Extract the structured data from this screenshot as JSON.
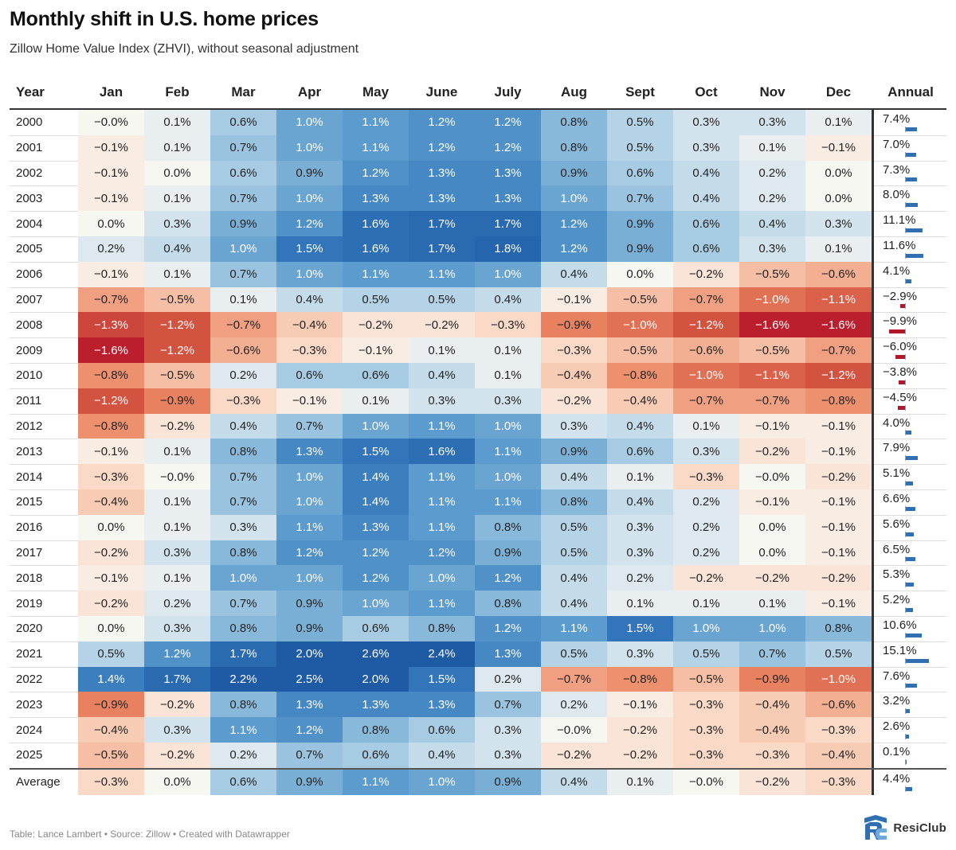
{
  "title": "Monthly shift in U.S. home prices",
  "subtitle": "Zillow Home Value Index (ZHVI), without seasonal adjustment",
  "footer": "Table: Lance Lambert • Source: Zillow • Created with Datawrapper",
  "brand": {
    "name": "ResiClub",
    "logo_icon": "resiclub-logo-icon"
  },
  "colors": {
    "positive": "#2166ac",
    "negative": "#b2182b",
    "neutral": "#f7f7f2"
  },
  "chart_data": {
    "type": "table",
    "title": "Monthly shift in U.S. home prices",
    "subtitle": "Zillow Home Value Index (ZHVI), without seasonal adjustment",
    "columns": [
      "Year",
      "Jan",
      "Feb",
      "Mar",
      "Apr",
      "May",
      "June",
      "July",
      "Aug",
      "Sept",
      "Oct",
      "Nov",
      "Dec",
      "Annual"
    ],
    "rows": [
      {
        "label": "2000",
        "values": [
          "−0.0%",
          "0.1%",
          "0.6%",
          "1.0%",
          "1.1%",
          "1.2%",
          "1.2%",
          "0.8%",
          "0.5%",
          "0.3%",
          "0.3%",
          "0.1%"
        ],
        "annual": "7.4%",
        "annual_value": 7.4
      },
      {
        "label": "2001",
        "values": [
          "−0.1%",
          "0.1%",
          "0.7%",
          "1.0%",
          "1.1%",
          "1.2%",
          "1.2%",
          "0.8%",
          "0.5%",
          "0.3%",
          "0.1%",
          "−0.1%"
        ],
        "annual": "7.0%",
        "annual_value": 7.0
      },
      {
        "label": "2002",
        "values": [
          "−0.1%",
          "0.0%",
          "0.6%",
          "0.9%",
          "1.2%",
          "1.3%",
          "1.3%",
          "0.9%",
          "0.6%",
          "0.4%",
          "0.2%",
          "0.0%"
        ],
        "annual": "7.3%",
        "annual_value": 7.3
      },
      {
        "label": "2003",
        "values": [
          "−0.1%",
          "0.1%",
          "0.7%",
          "1.0%",
          "1.3%",
          "1.3%",
          "1.3%",
          "1.0%",
          "0.7%",
          "0.4%",
          "0.2%",
          "0.0%"
        ],
        "annual": "8.0%",
        "annual_value": 8.0
      },
      {
        "label": "2004",
        "values": [
          "0.0%",
          "0.3%",
          "0.9%",
          "1.2%",
          "1.6%",
          "1.7%",
          "1.7%",
          "1.2%",
          "0.9%",
          "0.6%",
          "0.4%",
          "0.3%"
        ],
        "annual": "11.1%",
        "annual_value": 11.1
      },
      {
        "label": "2005",
        "values": [
          "0.2%",
          "0.4%",
          "1.0%",
          "1.5%",
          "1.6%",
          "1.7%",
          "1.8%",
          "1.2%",
          "0.9%",
          "0.6%",
          "0.3%",
          "0.1%"
        ],
        "annual": "11.6%",
        "annual_value": 11.6
      },
      {
        "label": "2006",
        "values": [
          "−0.1%",
          "0.1%",
          "0.7%",
          "1.0%",
          "1.1%",
          "1.1%",
          "1.0%",
          "0.4%",
          "0.0%",
          "−0.2%",
          "−0.5%",
          "−0.6%"
        ],
        "annual": "4.1%",
        "annual_value": 4.1
      },
      {
        "label": "2007",
        "values": [
          "−0.7%",
          "−0.5%",
          "0.1%",
          "0.4%",
          "0.5%",
          "0.5%",
          "0.4%",
          "−0.1%",
          "−0.5%",
          "−0.7%",
          "−1.0%",
          "−1.1%"
        ],
        "annual": "−2.9%",
        "annual_value": -2.9
      },
      {
        "label": "2008",
        "values": [
          "−1.3%",
          "−1.2%",
          "−0.7%",
          "−0.4%",
          "−0.2%",
          "−0.2%",
          "−0.3%",
          "−0.9%",
          "−1.0%",
          "−1.2%",
          "−1.6%",
          "−1.6%"
        ],
        "annual": "−9.9%",
        "annual_value": -9.9
      },
      {
        "label": "2009",
        "values": [
          "−1.6%",
          "−1.2%",
          "−0.6%",
          "−0.3%",
          "−0.1%",
          "0.1%",
          "0.1%",
          "−0.3%",
          "−0.5%",
          "−0.6%",
          "−0.5%",
          "−0.7%"
        ],
        "annual": "−6.0%",
        "annual_value": -6.0
      },
      {
        "label": "2010",
        "values": [
          "−0.8%",
          "−0.5%",
          "0.2%",
          "0.6%",
          "0.6%",
          "0.4%",
          "0.1%",
          "−0.4%",
          "−0.8%",
          "−1.0%",
          "−1.1%",
          "−1.2%"
        ],
        "annual": "−3.8%",
        "annual_value": -3.8
      },
      {
        "label": "2011",
        "values": [
          "−1.2%",
          "−0.9%",
          "−0.3%",
          "−0.1%",
          "0.1%",
          "0.3%",
          "0.3%",
          "−0.2%",
          "−0.4%",
          "−0.7%",
          "−0.7%",
          "−0.8%"
        ],
        "annual": "−4.5%",
        "annual_value": -4.5
      },
      {
        "label": "2012",
        "values": [
          "−0.8%",
          "−0.2%",
          "0.4%",
          "0.7%",
          "1.0%",
          "1.1%",
          "1.0%",
          "0.3%",
          "0.4%",
          "0.1%",
          "−0.1%",
          "−0.1%"
        ],
        "annual": "4.0%",
        "annual_value": 4.0
      },
      {
        "label": "2013",
        "values": [
          "−0.1%",
          "0.1%",
          "0.8%",
          "1.3%",
          "1.5%",
          "1.6%",
          "1.1%",
          "0.9%",
          "0.6%",
          "0.3%",
          "−0.2%",
          "−0.1%"
        ],
        "annual": "7.9%",
        "annual_value": 7.9
      },
      {
        "label": "2014",
        "values": [
          "−0.3%",
          "−0.0%",
          "0.7%",
          "1.0%",
          "1.4%",
          "1.1%",
          "1.0%",
          "0.4%",
          "0.1%",
          "−0.3%",
          "−0.0%",
          "−0.2%"
        ],
        "annual": "5.1%",
        "annual_value": 5.1
      },
      {
        "label": "2015",
        "values": [
          "−0.4%",
          "0.1%",
          "0.7%",
          "1.0%",
          "1.4%",
          "1.1%",
          "1.1%",
          "0.8%",
          "0.4%",
          "0.2%",
          "−0.1%",
          "−0.1%"
        ],
        "annual": "6.6%",
        "annual_value": 6.6
      },
      {
        "label": "2016",
        "values": [
          "0.0%",
          "0.1%",
          "0.3%",
          "1.1%",
          "1.3%",
          "1.1%",
          "0.8%",
          "0.5%",
          "0.3%",
          "0.2%",
          "0.0%",
          "−0.1%"
        ],
        "annual": "5.6%",
        "annual_value": 5.6
      },
      {
        "label": "2017",
        "values": [
          "−0.2%",
          "0.3%",
          "0.8%",
          "1.2%",
          "1.2%",
          "1.2%",
          "0.9%",
          "0.5%",
          "0.3%",
          "0.2%",
          "0.0%",
          "−0.1%"
        ],
        "annual": "6.5%",
        "annual_value": 6.5
      },
      {
        "label": "2018",
        "values": [
          "−0.1%",
          "0.1%",
          "1.0%",
          "1.0%",
          "1.2%",
          "1.0%",
          "1.2%",
          "0.4%",
          "0.2%",
          "−0.2%",
          "−0.2%",
          "−0.2%"
        ],
        "annual": "5.3%",
        "annual_value": 5.3
      },
      {
        "label": "2019",
        "values": [
          "−0.2%",
          "0.2%",
          "0.7%",
          "0.9%",
          "1.0%",
          "1.1%",
          "0.8%",
          "0.4%",
          "0.1%",
          "0.1%",
          "0.1%",
          "−0.1%"
        ],
        "annual": "5.2%",
        "annual_value": 5.2
      },
      {
        "label": "2020",
        "values": [
          "0.0%",
          "0.3%",
          "0.8%",
          "0.9%",
          "0.6%",
          "0.8%",
          "1.2%",
          "1.1%",
          "1.5%",
          "1.0%",
          "1.0%",
          "0.8%"
        ],
        "annual": "10.6%",
        "annual_value": 10.6
      },
      {
        "label": "2021",
        "values": [
          "0.5%",
          "1.2%",
          "1.7%",
          "2.0%",
          "2.6%",
          "2.4%",
          "1.3%",
          "0.5%",
          "0.3%",
          "0.5%",
          "0.7%",
          "0.5%"
        ],
        "annual": "15.1%",
        "annual_value": 15.1
      },
      {
        "label": "2022",
        "values": [
          "1.4%",
          "1.7%",
          "2.2%",
          "2.5%",
          "2.0%",
          "1.5%",
          "0.2%",
          "−0.7%",
          "−0.8%",
          "−0.5%",
          "−0.9%",
          "−1.0%"
        ],
        "annual": "7.6%",
        "annual_value": 7.6
      },
      {
        "label": "2023",
        "values": [
          "−0.9%",
          "−0.2%",
          "0.8%",
          "1.3%",
          "1.3%",
          "1.3%",
          "0.7%",
          "0.2%",
          "−0.1%",
          "−0.3%",
          "−0.4%",
          "−0.6%"
        ],
        "annual": "3.2%",
        "annual_value": 3.2
      },
      {
        "label": "2024",
        "values": [
          "−0.4%",
          "0.3%",
          "1.1%",
          "1.2%",
          "0.8%",
          "0.6%",
          "0.3%",
          "−0.0%",
          "−0.2%",
          "−0.3%",
          "−0.4%",
          "−0.3%"
        ],
        "annual": "2.6%",
        "annual_value": 2.6
      },
      {
        "label": "2025",
        "values": [
          "−0.5%",
          "−0.2%",
          "0.2%",
          "0.7%",
          "0.6%",
          "0.4%",
          "0.3%",
          "−0.2%",
          "−0.2%",
          "−0.3%",
          "−0.3%",
          "−0.4%"
        ],
        "annual": "0.1%",
        "annual_value": 0.1
      }
    ],
    "average": {
      "label": "Average",
      "values": [
        "−0.3%",
        "0.0%",
        "0.6%",
        "0.9%",
        "1.1%",
        "1.0%",
        "0.9%",
        "0.4%",
        "0.1%",
        "−0.0%",
        "−0.2%",
        "−0.3%"
      ],
      "annual": "4.4%",
      "annual_value": 4.4
    }
  }
}
